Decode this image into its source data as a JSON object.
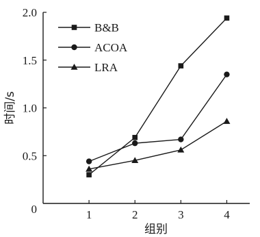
{
  "chart_data": {
    "type": "line",
    "xlabel": "组别",
    "ylabel": "时间/s",
    "x": [
      1,
      2,
      3,
      4
    ],
    "xlim": [
      0,
      4.5
    ],
    "ylim": [
      0,
      2.0
    ],
    "x_ticks": [
      "1",
      "2",
      "3",
      "4"
    ],
    "y_ticks": [
      "0",
      "0.5",
      "1.0",
      "1.5",
      "2.0"
    ],
    "grid": false,
    "legend_position": "top-left",
    "series": [
      {
        "name": "B&B",
        "marker": "square",
        "values": [
          0.3,
          0.69,
          1.44,
          1.94
        ]
      },
      {
        "name": "ACOA",
        "marker": "circle",
        "values": [
          0.44,
          0.63,
          0.67,
          1.35
        ]
      },
      {
        "name": "LRA",
        "marker": "triangle",
        "values": [
          0.36,
          0.45,
          0.56,
          0.86
        ]
      }
    ]
  }
}
